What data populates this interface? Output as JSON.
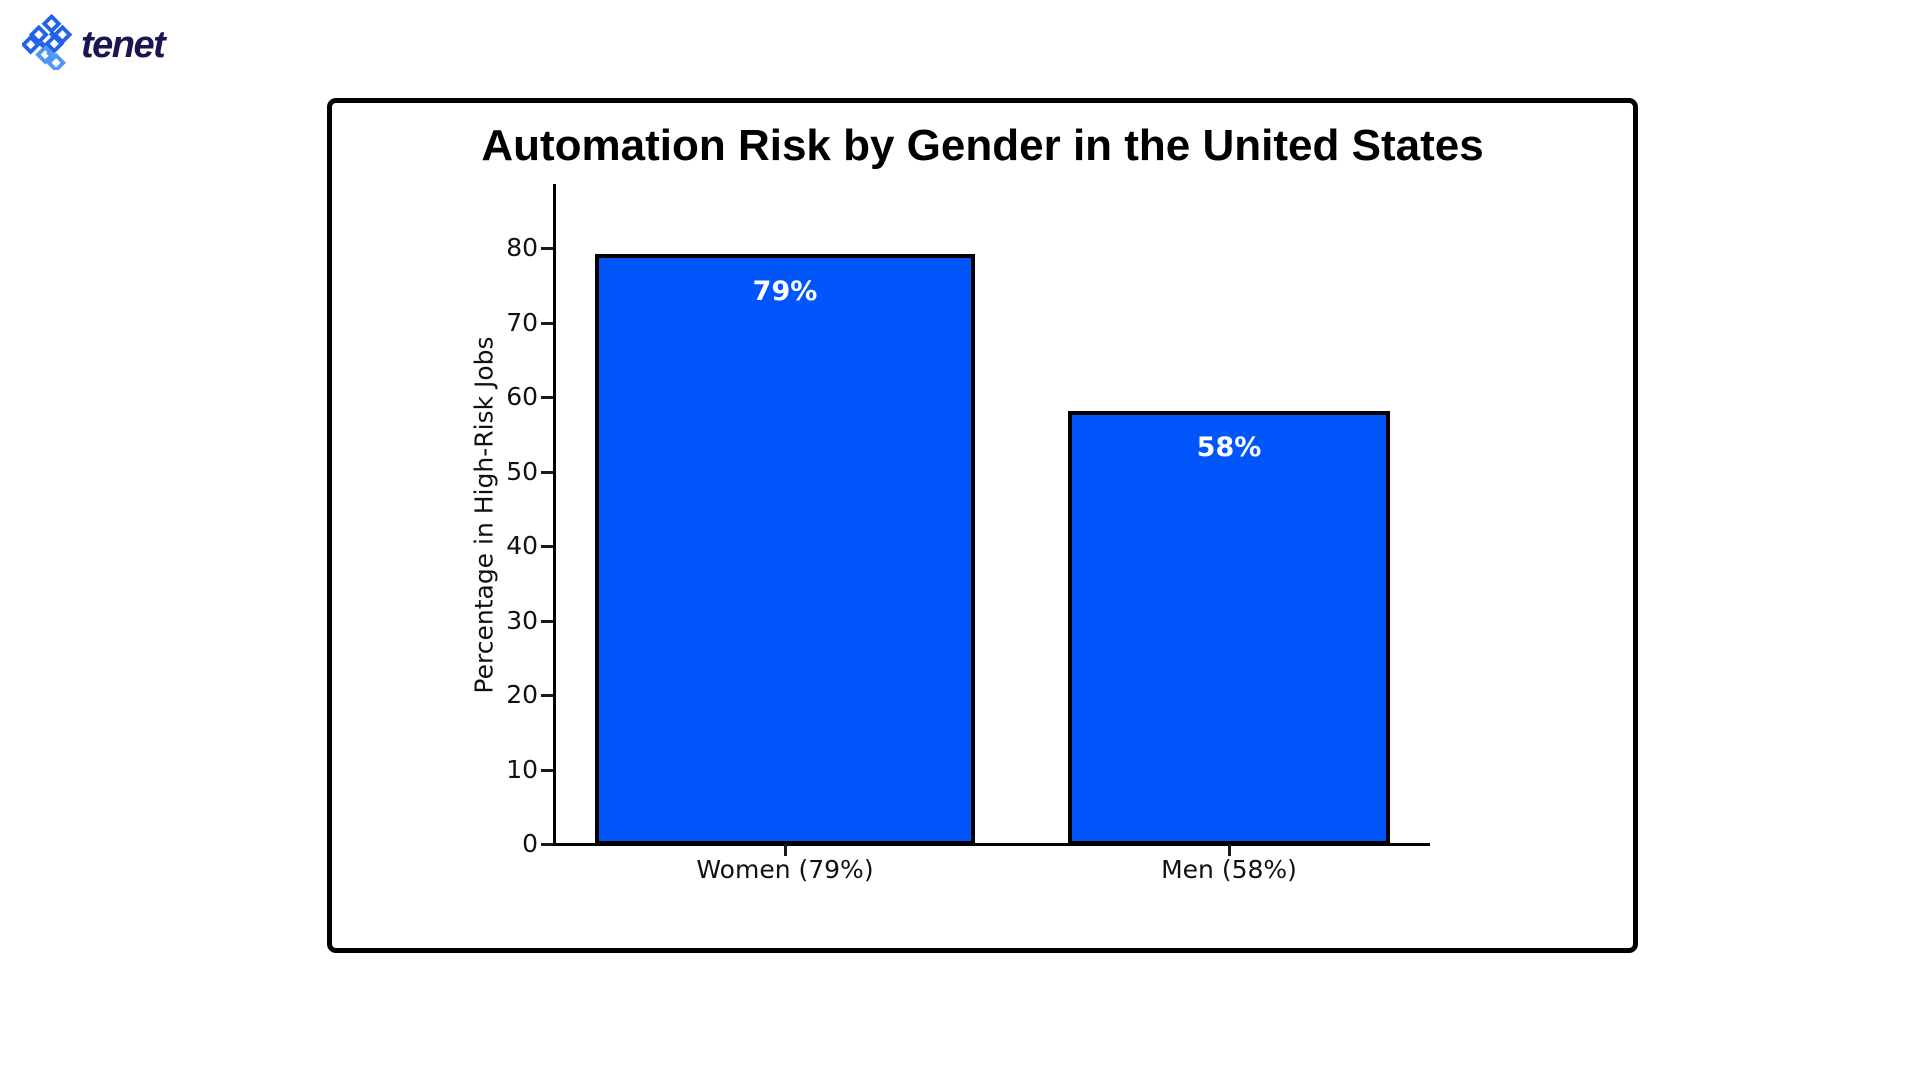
{
  "logo": {
    "text": "tenet",
    "icon": "tenet-pixel-cross-icon",
    "icon_color_dark": "#2262ea",
    "icon_color_light": "#4e96f6",
    "text_color": "#1a1653"
  },
  "chart_card": {
    "border_color": "#000000",
    "background": "#ffffff"
  },
  "chart_data": {
    "type": "bar",
    "title": "Automation Risk by Gender in the United States",
    "categories": [
      "Women (79%)",
      "Men (58%)"
    ],
    "values": [
      79,
      58
    ],
    "bar_labels": [
      "79%",
      "58%"
    ],
    "xlabel": "",
    "ylabel": "Percentage in High-Risk Jobs",
    "yticks": [
      0,
      10,
      20,
      30,
      40,
      50,
      60,
      70,
      80
    ],
    "ylim": [
      0,
      88.5
    ],
    "grid": false,
    "legend_position": "none",
    "bar_color": "#0056fb",
    "bar_border_color": "#000000",
    "bar_label_color": "#ffffff",
    "axis_color": "#000000",
    "tick_label_color": "#111111"
  }
}
